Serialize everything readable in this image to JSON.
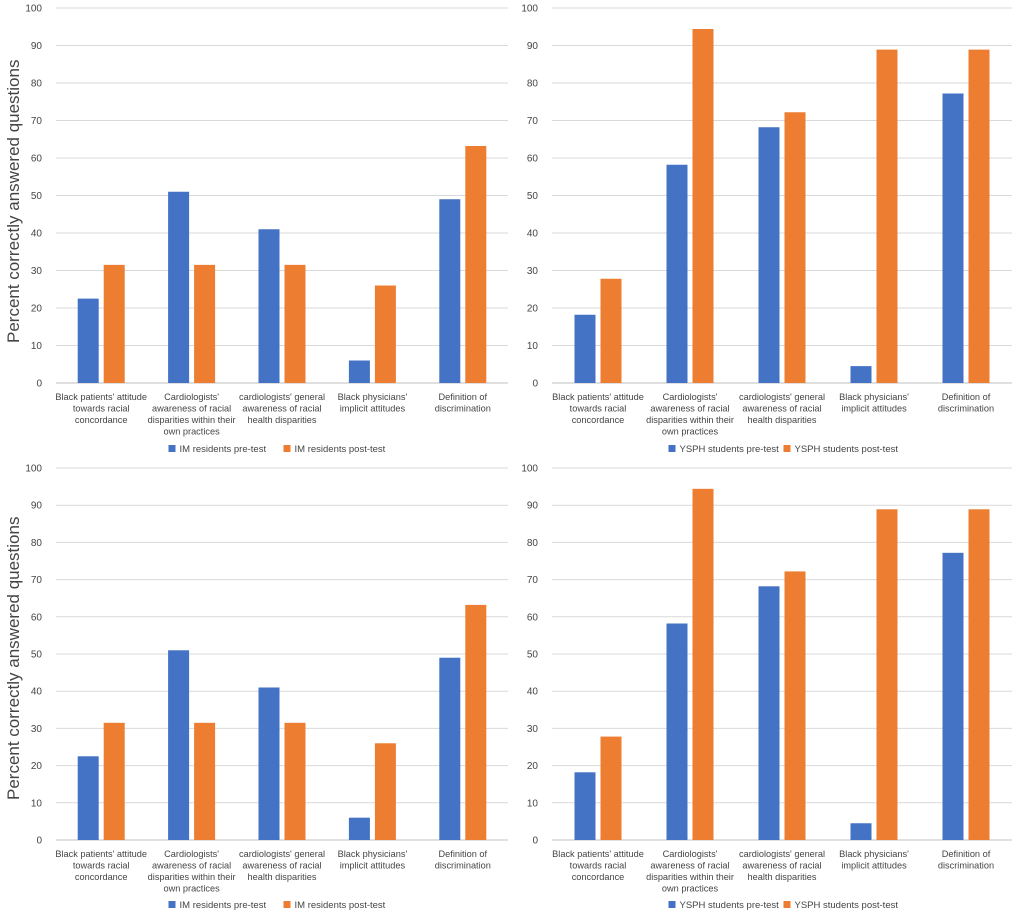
{
  "figure": {
    "ylabel_top": "Percent correctly answered questions",
    "ylabel_bottom": "Percent correctly answered questions",
    "colors": {
      "pre": "#4472c4",
      "post": "#ed7d31",
      "grid": "#d9d9d9",
      "axis": "#bfbfbf"
    }
  },
  "chart_data": [
    {
      "type": "bar",
      "position": "top-left",
      "ylim": [
        0,
        100
      ],
      "yticks": [
        0,
        10,
        20,
        30,
        40,
        50,
        60,
        70,
        80,
        90,
        100
      ],
      "categories": [
        [
          "Black patients' attitude",
          "towards racial",
          "concordance"
        ],
        [
          "Cardiologists'",
          "awareness of racial",
          "disparities within their",
          "own practices"
        ],
        [
          "cardiologists' general",
          "awareness of racial",
          "health disparities"
        ],
        [
          "Black physicians'",
          "implicit attitudes"
        ],
        [
          "Definition of",
          "discrimination"
        ]
      ],
      "series": [
        {
          "name": "IM residents pre-test",
          "values": [
            22.5,
            51,
            41,
            6,
            49
          ]
        },
        {
          "name": "IM residents post-test",
          "values": [
            31.5,
            31.5,
            31.5,
            26,
            63.2
          ]
        }
      ],
      "legend": "bottom-center"
    },
    {
      "type": "bar",
      "position": "top-right",
      "ylim": [
        0,
        100
      ],
      "yticks": [
        0,
        10,
        20,
        30,
        40,
        50,
        60,
        70,
        80,
        90,
        100
      ],
      "categories": [
        [
          "Black patients' attitude",
          "towards racial",
          "concordance"
        ],
        [
          "Cardiologists'",
          "awareness of racial",
          "disparities within their",
          "own practices"
        ],
        [
          "cardiologists' general",
          "awareness of racial",
          "health disparities"
        ],
        [
          "Black physicians'",
          "implicit attitudes"
        ],
        [
          "Definition of",
          "discrimination"
        ]
      ],
      "series": [
        {
          "name": "YSPH students pre-test",
          "values": [
            18.2,
            58.2,
            68.2,
            4.5,
            77.2
          ]
        },
        {
          "name": "YSPH students post-test",
          "values": [
            27.8,
            94.4,
            72.2,
            88.9,
            88.9
          ]
        }
      ],
      "legend": "bottom-center"
    },
    {
      "type": "bar",
      "position": "bottom-left",
      "ylim": [
        0,
        100
      ],
      "yticks": [
        0,
        10,
        20,
        30,
        40,
        50,
        60,
        70,
        80,
        90,
        100
      ],
      "categories": [
        [
          "Black patients' attitude",
          "towards racial",
          "concordance"
        ],
        [
          "Cardiologists'",
          "awareness of racial",
          "disparities within their",
          "own practices"
        ],
        [
          "cardiologists' general",
          "awareness of racial",
          "health disparities"
        ],
        [
          "Black physicians'",
          "implicit attitudes"
        ],
        [
          "Definition of",
          "discrimination"
        ]
      ],
      "series": [
        {
          "name": "IM residents pre-test",
          "values": [
            22.5,
            51,
            41,
            6,
            49
          ]
        },
        {
          "name": "IM residents post-test",
          "values": [
            31.5,
            31.5,
            31.5,
            26,
            63.2
          ]
        }
      ],
      "legend": "bottom-center"
    },
    {
      "type": "bar",
      "position": "bottom-right",
      "ylim": [
        0,
        100
      ],
      "yticks": [
        0,
        10,
        20,
        30,
        40,
        50,
        60,
        70,
        80,
        90,
        100
      ],
      "categories": [
        [
          "Black patients' attitude",
          "towards racial",
          "concordance"
        ],
        [
          "Cardiologists'",
          "awareness of racial",
          "disparities within their",
          "own practices"
        ],
        [
          "cardiologists' general",
          "awareness of racial",
          "health disparities"
        ],
        [
          "Black physicians'",
          "implicit attitudes"
        ],
        [
          "Definition of",
          "discrimination"
        ]
      ],
      "series": [
        {
          "name": "YSPH students pre-test",
          "values": [
            18.2,
            58.2,
            68.2,
            4.5,
            77.2
          ]
        },
        {
          "name": "YSPH students post-test",
          "values": [
            27.8,
            94.4,
            72.2,
            88.9,
            88.9
          ]
        }
      ],
      "legend": "bottom-center"
    }
  ]
}
